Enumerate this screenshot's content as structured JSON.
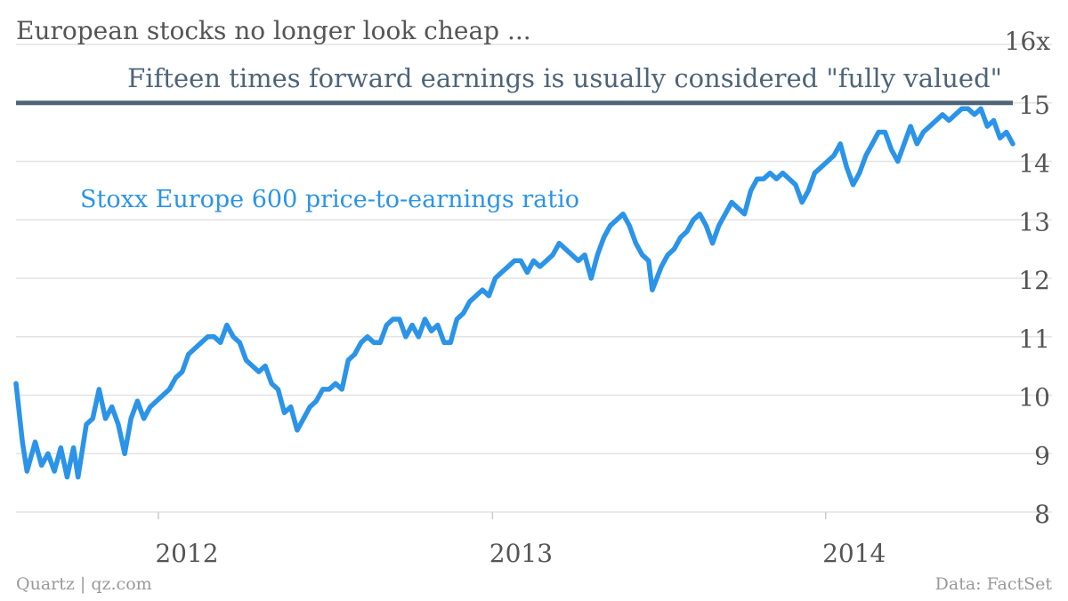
{
  "chart_data": {
    "type": "line",
    "title": "European stocks no longer look cheap ...",
    "ylim": [
      8,
      16
    ],
    "y_ticks": [
      "8",
      "9",
      "10",
      "11",
      "12",
      "13",
      "14",
      "15",
      "16x"
    ],
    "y_tick_values": [
      8,
      9,
      10,
      11,
      12,
      13,
      14,
      15,
      16
    ],
    "x_range": [
      "2011-07-29",
      "2014-07-25"
    ],
    "x_ticks": [
      {
        "label": "2012",
        "date": "2012-01-01"
      },
      {
        "label": "2013",
        "date": "2013-01-01"
      },
      {
        "label": "2014",
        "date": "2014-01-01"
      }
    ],
    "grid": true,
    "reference_line": {
      "value": 15,
      "label": "Fifteen times forward earnings is usually considered \"fully valued\"",
      "color": "#4e6478"
    },
    "series": [
      {
        "name": "Stoxx Europe 600 price-to-earnings ratio",
        "color": "#2b94e8",
        "points": [
          [
            "2011-07-29",
            10.2
          ],
          [
            "2011-08-05",
            9.2
          ],
          [
            "2011-08-10",
            8.7
          ],
          [
            "2011-08-19",
            9.2
          ],
          [
            "2011-08-26",
            8.8
          ],
          [
            "2011-09-02",
            9.0
          ],
          [
            "2011-09-09",
            8.7
          ],
          [
            "2011-09-16",
            9.1
          ],
          [
            "2011-09-23",
            8.6
          ],
          [
            "2011-09-30",
            9.1
          ],
          [
            "2011-10-05",
            8.6
          ],
          [
            "2011-10-14",
            9.5
          ],
          [
            "2011-10-21",
            9.6
          ],
          [
            "2011-10-28",
            10.1
          ],
          [
            "2011-11-04",
            9.6
          ],
          [
            "2011-11-11",
            9.8
          ],
          [
            "2011-11-18",
            9.5
          ],
          [
            "2011-11-25",
            9.0
          ],
          [
            "2011-12-02",
            9.6
          ],
          [
            "2011-12-09",
            9.9
          ],
          [
            "2011-12-16",
            9.6
          ],
          [
            "2011-12-23",
            9.8
          ],
          [
            "2011-12-30",
            9.9
          ],
          [
            "2012-01-06",
            10.0
          ],
          [
            "2012-01-13",
            10.1
          ],
          [
            "2012-01-20",
            10.3
          ],
          [
            "2012-01-27",
            10.4
          ],
          [
            "2012-02-03",
            10.7
          ],
          [
            "2012-02-10",
            10.8
          ],
          [
            "2012-02-17",
            10.9
          ],
          [
            "2012-02-24",
            11.0
          ],
          [
            "2012-03-02",
            11.0
          ],
          [
            "2012-03-09",
            10.9
          ],
          [
            "2012-03-16",
            11.2
          ],
          [
            "2012-03-23",
            11.0
          ],
          [
            "2012-03-30",
            10.9
          ],
          [
            "2012-04-06",
            10.6
          ],
          [
            "2012-04-13",
            10.5
          ],
          [
            "2012-04-20",
            10.4
          ],
          [
            "2012-04-27",
            10.5
          ],
          [
            "2012-05-04",
            10.2
          ],
          [
            "2012-05-11",
            10.1
          ],
          [
            "2012-05-18",
            9.7
          ],
          [
            "2012-05-25",
            9.8
          ],
          [
            "2012-06-01",
            9.4
          ],
          [
            "2012-06-08",
            9.6
          ],
          [
            "2012-06-15",
            9.8
          ],
          [
            "2012-06-22",
            9.9
          ],
          [
            "2012-06-29",
            10.1
          ],
          [
            "2012-07-06",
            10.1
          ],
          [
            "2012-07-13",
            10.2
          ],
          [
            "2012-07-20",
            10.1
          ],
          [
            "2012-07-27",
            10.6
          ],
          [
            "2012-08-03",
            10.7
          ],
          [
            "2012-08-10",
            10.9
          ],
          [
            "2012-08-17",
            11.0
          ],
          [
            "2012-08-24",
            10.9
          ],
          [
            "2012-08-31",
            10.9
          ],
          [
            "2012-09-07",
            11.2
          ],
          [
            "2012-09-14",
            11.3
          ],
          [
            "2012-09-21",
            11.3
          ],
          [
            "2012-09-28",
            11.0
          ],
          [
            "2012-10-05",
            11.2
          ],
          [
            "2012-10-12",
            11.0
          ],
          [
            "2012-10-19",
            11.3
          ],
          [
            "2012-10-26",
            11.1
          ],
          [
            "2012-11-02",
            11.2
          ],
          [
            "2012-11-09",
            10.9
          ],
          [
            "2012-11-16",
            10.9
          ],
          [
            "2012-11-23",
            11.3
          ],
          [
            "2012-11-30",
            11.4
          ],
          [
            "2012-12-07",
            11.6
          ],
          [
            "2012-12-14",
            11.7
          ],
          [
            "2012-12-21",
            11.8
          ],
          [
            "2012-12-28",
            11.7
          ],
          [
            "2013-01-04",
            12.0
          ],
          [
            "2013-01-11",
            12.1
          ],
          [
            "2013-01-18",
            12.2
          ],
          [
            "2013-01-25",
            12.3
          ],
          [
            "2013-02-01",
            12.3
          ],
          [
            "2013-02-08",
            12.1
          ],
          [
            "2013-02-15",
            12.3
          ],
          [
            "2013-02-22",
            12.2
          ],
          [
            "2013-03-01",
            12.3
          ],
          [
            "2013-03-08",
            12.4
          ],
          [
            "2013-03-15",
            12.6
          ],
          [
            "2013-03-22",
            12.5
          ],
          [
            "2013-03-29",
            12.4
          ],
          [
            "2013-04-05",
            12.3
          ],
          [
            "2013-04-12",
            12.4
          ],
          [
            "2013-04-19",
            12.0
          ],
          [
            "2013-04-26",
            12.4
          ],
          [
            "2013-05-03",
            12.7
          ],
          [
            "2013-05-10",
            12.9
          ],
          [
            "2013-05-17",
            13.0
          ],
          [
            "2013-05-24",
            13.1
          ],
          [
            "2013-05-31",
            12.9
          ],
          [
            "2013-06-07",
            12.6
          ],
          [
            "2013-06-14",
            12.4
          ],
          [
            "2013-06-21",
            12.3
          ],
          [
            "2013-06-25",
            11.8
          ],
          [
            "2013-07-05",
            12.2
          ],
          [
            "2013-07-12",
            12.4
          ],
          [
            "2013-07-19",
            12.5
          ],
          [
            "2013-07-26",
            12.7
          ],
          [
            "2013-08-02",
            12.8
          ],
          [
            "2013-08-09",
            13.0
          ],
          [
            "2013-08-16",
            13.1
          ],
          [
            "2013-08-23",
            12.9
          ],
          [
            "2013-08-30",
            12.6
          ],
          [
            "2013-09-06",
            12.9
          ],
          [
            "2013-09-13",
            13.1
          ],
          [
            "2013-09-20",
            13.3
          ],
          [
            "2013-09-27",
            13.2
          ],
          [
            "2013-10-04",
            13.1
          ],
          [
            "2013-10-11",
            13.5
          ],
          [
            "2013-10-18",
            13.7
          ],
          [
            "2013-10-25",
            13.7
          ],
          [
            "2013-11-01",
            13.8
          ],
          [
            "2013-11-08",
            13.7
          ],
          [
            "2013-11-15",
            13.8
          ],
          [
            "2013-11-22",
            13.7
          ],
          [
            "2013-11-29",
            13.6
          ],
          [
            "2013-12-06",
            13.3
          ],
          [
            "2013-12-13",
            13.5
          ],
          [
            "2013-12-20",
            13.8
          ],
          [
            "2013-12-27",
            13.9
          ],
          [
            "2014-01-03",
            14.0
          ],
          [
            "2014-01-10",
            14.1
          ],
          [
            "2014-01-17",
            14.3
          ],
          [
            "2014-01-24",
            13.9
          ],
          [
            "2014-01-31",
            13.6
          ],
          [
            "2014-02-07",
            13.8
          ],
          [
            "2014-02-14",
            14.1
          ],
          [
            "2014-02-21",
            14.3
          ],
          [
            "2014-02-28",
            14.5
          ],
          [
            "2014-03-07",
            14.5
          ],
          [
            "2014-03-14",
            14.2
          ],
          [
            "2014-03-21",
            14.0
          ],
          [
            "2014-03-28",
            14.3
          ],
          [
            "2014-04-04",
            14.6
          ],
          [
            "2014-04-11",
            14.3
          ],
          [
            "2014-04-18",
            14.5
          ],
          [
            "2014-04-25",
            14.6
          ],
          [
            "2014-05-02",
            14.7
          ],
          [
            "2014-05-09",
            14.8
          ],
          [
            "2014-05-16",
            14.7
          ],
          [
            "2014-05-23",
            14.8
          ],
          [
            "2014-05-30",
            14.9
          ],
          [
            "2014-06-06",
            14.9
          ],
          [
            "2014-06-13",
            14.8
          ],
          [
            "2014-06-20",
            14.9
          ],
          [
            "2014-06-27",
            14.6
          ],
          [
            "2014-07-04",
            14.7
          ],
          [
            "2014-07-11",
            14.4
          ],
          [
            "2014-07-18",
            14.5
          ],
          [
            "2014-07-25",
            14.3
          ]
        ]
      }
    ]
  },
  "footer": {
    "source_left": "Quartz | qz.com",
    "source_right": "Data: FactSet"
  }
}
